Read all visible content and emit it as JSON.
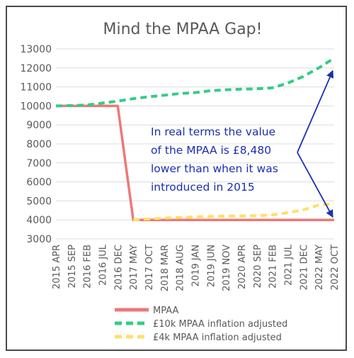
{
  "chart_data": {
    "type": "line",
    "title": "Mind the MPAA Gap!",
    "xlabel": "",
    "ylabel": "",
    "ylim": [
      3000,
      13000
    ],
    "yticks": [
      3000,
      4000,
      5000,
      6000,
      7000,
      8000,
      9000,
      10000,
      11000,
      12000,
      13000
    ],
    "categories": [
      "2015 APR",
      "2015 SEP",
      "2016 FEB",
      "2016 JUL",
      "2016 DEC",
      "2017 MAY",
      "2017 OCT",
      "2018 MAR",
      "2018 AUG",
      "2019 JAN",
      "2019 JUN",
      "2019 NOV",
      "2020 APR",
      "2020 SEP",
      "2021 FEB",
      "2021 JUL",
      "2021 DEC",
      "2022 MAY",
      "2022 OCT"
    ],
    "grid": "horizontal",
    "legend_position": "bottom",
    "series": [
      {
        "name": "MPAA",
        "color": "#ee7878",
        "style": "solid",
        "x": [
          "2015 APR",
          "2016 DEC",
          "2017 MAY",
          "2022 OCT"
        ],
        "values": [
          10000,
          10000,
          4000,
          4000
        ]
      },
      {
        "name": "£10k MPAA inflation adjusted",
        "color": "#33cc88",
        "style": "dashed",
        "x": [
          "2015 APR",
          "2015 SEP",
          "2016 FEB",
          "2016 JUL",
          "2016 DEC",
          "2017 MAY",
          "2017 OCT",
          "2018 MAR",
          "2018 AUG",
          "2019 JAN",
          "2019 JUN",
          "2019 NOV",
          "2020 APR",
          "2020 SEP",
          "2021 FEB",
          "2021 JUL",
          "2021 DEC",
          "2022 MAY",
          "2022 OCT"
        ],
        "values": [
          10000,
          10020,
          10050,
          10150,
          10250,
          10380,
          10480,
          10560,
          10650,
          10700,
          10800,
          10850,
          10880,
          10900,
          10950,
          11200,
          11550,
          12000,
          12520
        ]
      },
      {
        "name": "£4k MPAA inflation adjusted",
        "color": "#ffe066",
        "style": "dashed",
        "x": [
          "2017 MAY",
          "2017 OCT",
          "2018 MAR",
          "2018 AUG",
          "2019 JAN",
          "2019 JUN",
          "2019 NOV",
          "2020 APR",
          "2020 SEP",
          "2021 FEB",
          "2021 JUL",
          "2021 DEC",
          "2022 MAY",
          "2022 OCT"
        ],
        "values": [
          4000,
          4050,
          4100,
          4130,
          4160,
          4180,
          4200,
          4210,
          4220,
          4260,
          4380,
          4530,
          4780,
          4850
        ]
      }
    ],
    "annotation": {
      "lines": [
        "In real terms the value",
        "of the MPAA is £8,480",
        "lower than when it was",
        "introduced in 2015"
      ],
      "color": "#1a2fb0",
      "arrow_targets": [
        [
          "2022 OCT",
          12000
        ],
        [
          "2022 OCT",
          4000
        ]
      ]
    }
  }
}
